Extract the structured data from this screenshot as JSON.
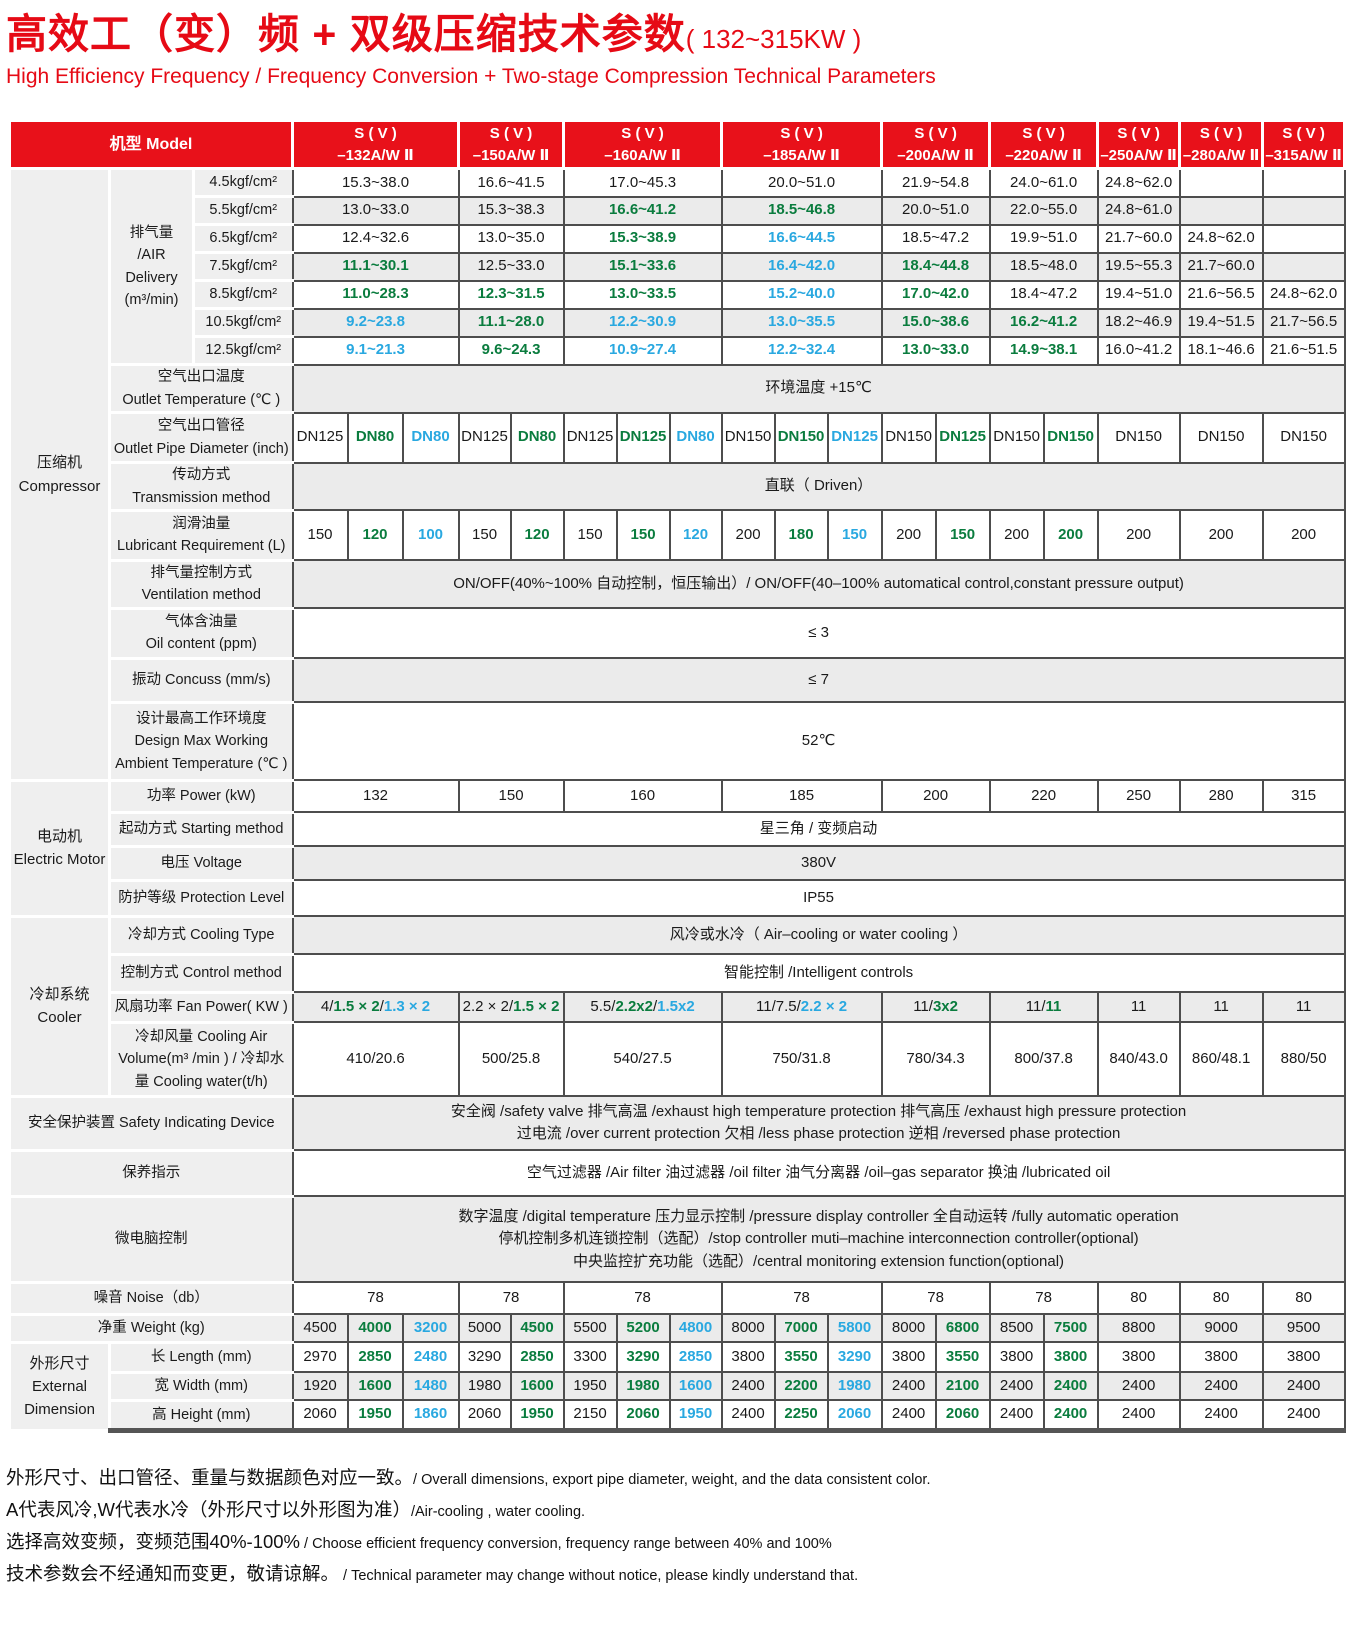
{
  "title": {
    "zh": "高效工（变）频 + 双级压缩技术参数",
    "range": "( 132~315KW )",
    "en": "High Efficiency Frequency / Frequency Conversion + Two-stage Compression Technical Parameters"
  },
  "colors": {
    "red": "#e8111a",
    "green": "#0a7c3e",
    "blue": "#29a8e0",
    "black": "#1a1a1a",
    "row_grey": "#ebebeb",
    "label_grey": "#efefef",
    "border": "#4d4d4d"
  },
  "header": {
    "model_label": "机型 Model",
    "models": [
      {
        "line1": "S ( V )",
        "line2": "–132A/W Ⅱ"
      },
      {
        "line1": "S ( V )",
        "line2": "–150A/W Ⅱ"
      },
      {
        "line1": "S ( V )",
        "line2": "–160A/W Ⅱ"
      },
      {
        "line1": "S ( V )",
        "line2": "–185A/W Ⅱ"
      },
      {
        "line1": "S ( V )",
        "line2": "–200A/W Ⅱ"
      },
      {
        "line1": "S ( V )",
        "line2": "–220A/W Ⅱ"
      },
      {
        "line1": "S ( V )",
        "line2": "–250A/W Ⅱ"
      },
      {
        "line1": "S ( V )",
        "line2": "–280A/W Ⅱ"
      },
      {
        "line1": "S ( V )",
        "line2": "–315A/W Ⅱ"
      }
    ]
  },
  "categories": {
    "compressor": {
      "zh": "压缩机",
      "en": "Compressor"
    },
    "motor": {
      "zh": "电动机",
      "en": "Electric Motor"
    },
    "cooler": {
      "zh": "冷却系统",
      "en": "Cooler"
    },
    "dimension": {
      "zh": "外形尺寸",
      "en1": "External",
      "en2": "Dimension"
    }
  },
  "rows": {
    "air_delivery": {
      "label_lines": [
        "排气量",
        "/AIR",
        "Delivery",
        "(m³/min)"
      ],
      "pressures": [
        "4.5kgf/cm²",
        "5.5kgf/cm²",
        "6.5kgf/cm²",
        "7.5kgf/cm²",
        "8.5kgf/cm²",
        "10.5kgf/cm²",
        "12.5kgf/cm²"
      ],
      "values": [
        [
          [
            "15.3~38.0",
            "k"
          ],
          [
            "16.6~41.5",
            "k"
          ],
          [
            "17.0~45.3",
            "k"
          ],
          [
            "20.0~51.0",
            "k"
          ],
          [
            "21.9~54.8",
            "k"
          ],
          [
            "24.0~61.0",
            "k"
          ],
          [
            "24.8~62.0",
            "k"
          ],
          [
            "",
            "k"
          ],
          [
            "",
            "k"
          ]
        ],
        [
          [
            "13.0~33.0",
            "k"
          ],
          [
            "15.3~38.3",
            "k"
          ],
          [
            "16.6~41.2",
            "g"
          ],
          [
            "18.5~46.8",
            "g"
          ],
          [
            "20.0~51.0",
            "k"
          ],
          [
            "22.0~55.0",
            "k"
          ],
          [
            "24.8~61.0",
            "k"
          ],
          [
            "",
            "k"
          ],
          [
            "",
            "k"
          ]
        ],
        [
          [
            "12.4~32.6",
            "k"
          ],
          [
            "13.0~35.0",
            "k"
          ],
          [
            "15.3~38.9",
            "g"
          ],
          [
            "16.6~44.5",
            "b"
          ],
          [
            "18.5~47.2",
            "k"
          ],
          [
            "19.9~51.0",
            "k"
          ],
          [
            "21.7~60.0",
            "k"
          ],
          [
            "24.8~62.0",
            "k"
          ],
          [
            "",
            "k"
          ]
        ],
        [
          [
            "11.1~30.1",
            "g"
          ],
          [
            "12.5~33.0",
            "k"
          ],
          [
            "15.1~33.6",
            "g"
          ],
          [
            "16.4~42.0",
            "b"
          ],
          [
            "18.4~44.8",
            "g"
          ],
          [
            "18.5~48.0",
            "k"
          ],
          [
            "19.5~55.3",
            "k"
          ],
          [
            "21.7~60.0",
            "k"
          ],
          [
            "",
            "k"
          ]
        ],
        [
          [
            "11.0~28.3",
            "g"
          ],
          [
            "12.3~31.5",
            "g"
          ],
          [
            "13.0~33.5",
            "g"
          ],
          [
            "15.2~40.0",
            "b"
          ],
          [
            "17.0~42.0",
            "g"
          ],
          [
            "18.4~47.2",
            "k"
          ],
          [
            "19.4~51.0",
            "k"
          ],
          [
            "21.6~56.5",
            "k"
          ],
          [
            "24.8~62.0",
            "k"
          ]
        ],
        [
          [
            "9.2~23.8",
            "b"
          ],
          [
            "11.1~28.0",
            "g"
          ],
          [
            "12.2~30.9",
            "b"
          ],
          [
            "13.0~35.5",
            "b"
          ],
          [
            "15.0~38.6",
            "g"
          ],
          [
            "16.2~41.2",
            "g"
          ],
          [
            "18.2~46.9",
            "k"
          ],
          [
            "19.4~51.5",
            "k"
          ],
          [
            "21.7~56.5",
            "k"
          ]
        ],
        [
          [
            "9.1~21.3",
            "b"
          ],
          [
            "9.6~24.3",
            "g"
          ],
          [
            "10.9~27.4",
            "b"
          ],
          [
            "12.2~32.4",
            "b"
          ],
          [
            "13.0~33.0",
            "g"
          ],
          [
            "14.9~38.1",
            "g"
          ],
          [
            "16.0~41.2",
            "k"
          ],
          [
            "18.1~46.6",
            "k"
          ],
          [
            "21.6~51.5",
            "k"
          ]
        ]
      ]
    },
    "outlet_temp": {
      "label": [
        "空气出口温度",
        "Outlet Temperature (℃ )"
      ],
      "value": "环境温度 +15℃"
    },
    "pipe": {
      "label": [
        "空气出口管径",
        "Outlet Pipe Diameter (inch)"
      ],
      "values": [
        [
          [
            "DN125",
            "k"
          ],
          [
            "DN80",
            "g"
          ],
          [
            "DN80",
            "b"
          ]
        ],
        [
          [
            "DN125",
            "k"
          ],
          [
            "DN80",
            "g"
          ]
        ],
        [
          [
            "DN125",
            "k"
          ],
          [
            "DN125",
            "g"
          ],
          [
            "DN80",
            "b"
          ]
        ],
        [
          [
            "DN150",
            "k"
          ],
          [
            "DN150",
            "g"
          ],
          [
            "DN125",
            "b"
          ]
        ],
        [
          [
            "DN150",
            "k"
          ],
          [
            "DN125",
            "g"
          ]
        ],
        [
          [
            "DN150",
            "k"
          ],
          [
            "DN150",
            "g"
          ]
        ],
        [
          [
            "DN150",
            "k"
          ]
        ],
        [
          [
            "DN150",
            "k"
          ]
        ],
        [
          [
            "DN150",
            "k"
          ]
        ]
      ]
    },
    "transmission": {
      "label": [
        "传动方式",
        "Transmission method"
      ],
      "value": "直联（ Driven）"
    },
    "lubricant": {
      "label": [
        "润滑油量",
        "Lubricant Requirement (L)"
      ],
      "values": [
        [
          [
            "150",
            "k"
          ],
          [
            "120",
            "g"
          ],
          [
            "100",
            "b"
          ]
        ],
        [
          [
            "150",
            "k"
          ],
          [
            "120",
            "g"
          ]
        ],
        [
          [
            "150",
            "k"
          ],
          [
            "150",
            "g"
          ],
          [
            "120",
            "b"
          ]
        ],
        [
          [
            "200",
            "k"
          ],
          [
            "180",
            "g"
          ],
          [
            "150",
            "b"
          ]
        ],
        [
          [
            "200",
            "k"
          ],
          [
            "150",
            "g"
          ]
        ],
        [
          [
            "200",
            "k"
          ],
          [
            "200",
            "g"
          ]
        ],
        [
          [
            "200",
            "k"
          ]
        ],
        [
          [
            "200",
            "k"
          ]
        ],
        [
          [
            "200",
            "k"
          ]
        ]
      ]
    },
    "ventilation": {
      "label": [
        "排气量控制方式",
        "Ventilation method"
      ],
      "value": "ON/OFF(40%~100% 自动控制，恒压输出）/ ON/OFF(40–100% automatical control,constant pressure output)"
    },
    "oil_content": {
      "label": [
        "气体含油量",
        "Oil content (ppm)"
      ],
      "value": "≤ 3"
    },
    "concuss": {
      "label": [
        "振动 Concuss (mm/s)"
      ],
      "value": "≤ 7"
    },
    "design_max": {
      "label": [
        "设计最高工作环境度",
        "Design Max Working",
        "Ambient  Temperature (℃ )"
      ],
      "value": "52℃"
    },
    "power": {
      "label": [
        "功率 Power (kW)"
      ],
      "values": [
        "132",
        "150",
        "160",
        "185",
        "200",
        "220",
        "250",
        "280",
        "315"
      ]
    },
    "starting": {
      "label": [
        "起动方式 Starting method"
      ],
      "value": "星三角 / 变频启动"
    },
    "voltage": {
      "label": [
        "电压 Voltage"
      ],
      "value": "380V"
    },
    "protection": {
      "label": [
        "防护等级 Protection Level"
      ],
      "value": "IP55"
    },
    "cooling_type": {
      "label": [
        "冷却方式 Cooling Type"
      ],
      "value": "风冷或水冷（ Air–cooling or water cooling ）"
    },
    "control": {
      "label": [
        "控制方式 Control method"
      ],
      "value": "智能控制 /Intelligent controls"
    },
    "fan_power": {
      "label": [
        "风扇功率 Fan Power( KW )"
      ],
      "values": [
        [
          [
            "4/",
            "k"
          ],
          [
            "1.5 × 2",
            "g"
          ],
          [
            "/",
            "k"
          ],
          [
            "1.3 × 2",
            "b"
          ]
        ],
        [
          [
            "2.2 × 2/",
            "k"
          ],
          [
            "1.5 × 2",
            "g"
          ]
        ],
        [
          [
            "5.5/",
            "k"
          ],
          [
            "2.2x2",
            "g"
          ],
          [
            "/",
            "k"
          ],
          [
            "1.5x2",
            "b"
          ]
        ],
        [
          [
            "11/7.5/",
            "k"
          ],
          [
            "2.2 × 2",
            "b"
          ]
        ],
        [
          [
            "11/",
            "k"
          ],
          [
            "3x2",
            "g"
          ]
        ],
        [
          [
            "11/",
            "k"
          ],
          [
            "11",
            "g"
          ]
        ],
        [
          [
            "11",
            "k"
          ]
        ],
        [
          [
            "11",
            "k"
          ]
        ],
        [
          [
            "11",
            "k"
          ]
        ]
      ]
    },
    "cooling_air": {
      "label": [
        "冷却风量 Cooling Air",
        "Volume(m³ /min ) / 冷却水",
        "量 Cooling water(t/h)"
      ],
      "values": [
        "410/20.6",
        "500/25.8",
        "540/27.5",
        "750/31.8",
        "780/34.3",
        "800/37.8",
        "840/43.0",
        "860/48.1",
        "880/50"
      ]
    },
    "safety": {
      "label": [
        "安全保护装置 Safety Indicating Device"
      ],
      "lines": [
        "安全阀 /safety valve  排气高温 /exhaust high temperature protection  排气高压 /exhaust high pressure protection",
        "过电流 /over current protection  欠相 /less phase protection  逆相 /reversed phase  protection"
      ]
    },
    "maintenance": {
      "label": [
        "保养指示"
      ],
      "lines": [
        "空气过滤器 /Air filter  油过滤器 /oil filter   油气分离器 /oil–gas separator  换油 /lubricated oil"
      ]
    },
    "micro": {
      "label": [
        "微电脑控制"
      ],
      "lines": [
        "数字温度 /digital temperature  压力显示控制 /pressure display controller  全自动运转 /fully automatic operation",
        "停机控制多机连锁控制（选配）/stop controller muti–machine interconnection controller(optional)",
        "中央监控扩充功能（选配）/central monitoring extension function(optional)"
      ]
    },
    "noise": {
      "label": [
        "噪音 Noise（db）"
      ],
      "values": [
        "78",
        "78",
        "78",
        "78",
        "78",
        "78",
        "80",
        "80",
        "80"
      ]
    },
    "weight": {
      "label": [
        "净重 Weight (kg)"
      ],
      "values": [
        [
          [
            "4500",
            "k"
          ],
          [
            "4000",
            "g"
          ],
          [
            "3200",
            "b"
          ]
        ],
        [
          [
            "5000",
            "k"
          ],
          [
            "4500",
            "g"
          ]
        ],
        [
          [
            "5500",
            "k"
          ],
          [
            "5200",
            "g"
          ],
          [
            "4800",
            "b"
          ]
        ],
        [
          [
            "8000",
            "k"
          ],
          [
            "7000",
            "g"
          ],
          [
            "5800",
            "b"
          ]
        ],
        [
          [
            "8000",
            "k"
          ],
          [
            "6800",
            "g"
          ]
        ],
        [
          [
            "8500",
            "k"
          ],
          [
            "7500",
            "g"
          ]
        ],
        [
          [
            "8800",
            "k"
          ]
        ],
        [
          [
            "9000",
            "k"
          ]
        ],
        [
          [
            "9500",
            "k"
          ]
        ]
      ]
    },
    "length": {
      "label": [
        "长 Length  (mm)"
      ],
      "values": [
        [
          [
            "2970",
            "k"
          ],
          [
            "2850",
            "g"
          ],
          [
            "2480",
            "b"
          ]
        ],
        [
          [
            "3290",
            "k"
          ],
          [
            "2850",
            "g"
          ]
        ],
        [
          [
            "3300",
            "k"
          ],
          [
            "3290",
            "g"
          ],
          [
            "2850",
            "b"
          ]
        ],
        [
          [
            "3800",
            "k"
          ],
          [
            "3550",
            "g"
          ],
          [
            "3290",
            "b"
          ]
        ],
        [
          [
            "3800",
            "k"
          ],
          [
            "3550",
            "g"
          ]
        ],
        [
          [
            "3800",
            "k"
          ],
          [
            "3800",
            "g"
          ]
        ],
        [
          [
            "3800",
            "k"
          ]
        ],
        [
          [
            "3800",
            "k"
          ]
        ],
        [
          [
            "3800",
            "k"
          ]
        ]
      ]
    },
    "width": {
      "label": [
        "宽 Width   (mm)"
      ],
      "values": [
        [
          [
            "1920",
            "k"
          ],
          [
            "1600",
            "g"
          ],
          [
            "1480",
            "b"
          ]
        ],
        [
          [
            "1980",
            "k"
          ],
          [
            "1600",
            "g"
          ]
        ],
        [
          [
            "1950",
            "k"
          ],
          [
            "1980",
            "g"
          ],
          [
            "1600",
            "b"
          ]
        ],
        [
          [
            "2400",
            "k"
          ],
          [
            "2200",
            "g"
          ],
          [
            "1980",
            "b"
          ]
        ],
        [
          [
            "2400",
            "k"
          ],
          [
            "2100",
            "g"
          ]
        ],
        [
          [
            "2400",
            "k"
          ],
          [
            "2400",
            "g"
          ]
        ],
        [
          [
            "2400",
            "k"
          ]
        ],
        [
          [
            "2400",
            "k"
          ]
        ],
        [
          [
            "2400",
            "k"
          ]
        ]
      ]
    },
    "height": {
      "label": [
        "高 Height  (mm)"
      ],
      "values": [
        [
          [
            "2060",
            "k"
          ],
          [
            "1950",
            "g"
          ],
          [
            "1860",
            "b"
          ]
        ],
        [
          [
            "2060",
            "k"
          ],
          [
            "1950",
            "g"
          ]
        ],
        [
          [
            "2150",
            "k"
          ],
          [
            "2060",
            "g"
          ],
          [
            "1950",
            "b"
          ]
        ],
        [
          [
            "2400",
            "k"
          ],
          [
            "2250",
            "g"
          ],
          [
            "2060",
            "b"
          ]
        ],
        [
          [
            "2400",
            "k"
          ],
          [
            "2060",
            "g"
          ]
        ],
        [
          [
            "2400",
            "k"
          ],
          [
            "2400",
            "g"
          ]
        ],
        [
          [
            "2400",
            "k"
          ]
        ],
        [
          [
            "2400",
            "k"
          ]
        ],
        [
          [
            "2400",
            "k"
          ]
        ]
      ]
    }
  },
  "footer": {
    "lines": [
      {
        "zh": "外形尺寸、出口管径、重量与数据颜色对应一致。",
        "en": "/ Overall dimensions, export pipe diameter, weight, and the data consistent color."
      },
      {
        "zh": "A代表风冷,W代表水冷（外形尺寸以外形图为准）",
        "en": "/Air-cooling , water cooling."
      },
      {
        "zh": "选择高效变频，变频范围40%-100%",
        "en": " / Choose efficient frequency conversion, frequency range between 40% and 100%"
      },
      {
        "zh": "技术参数会不经通知而变更，敬请谅解。",
        "en": " / Technical parameter may change without notice, please kindly understand that."
      }
    ]
  }
}
